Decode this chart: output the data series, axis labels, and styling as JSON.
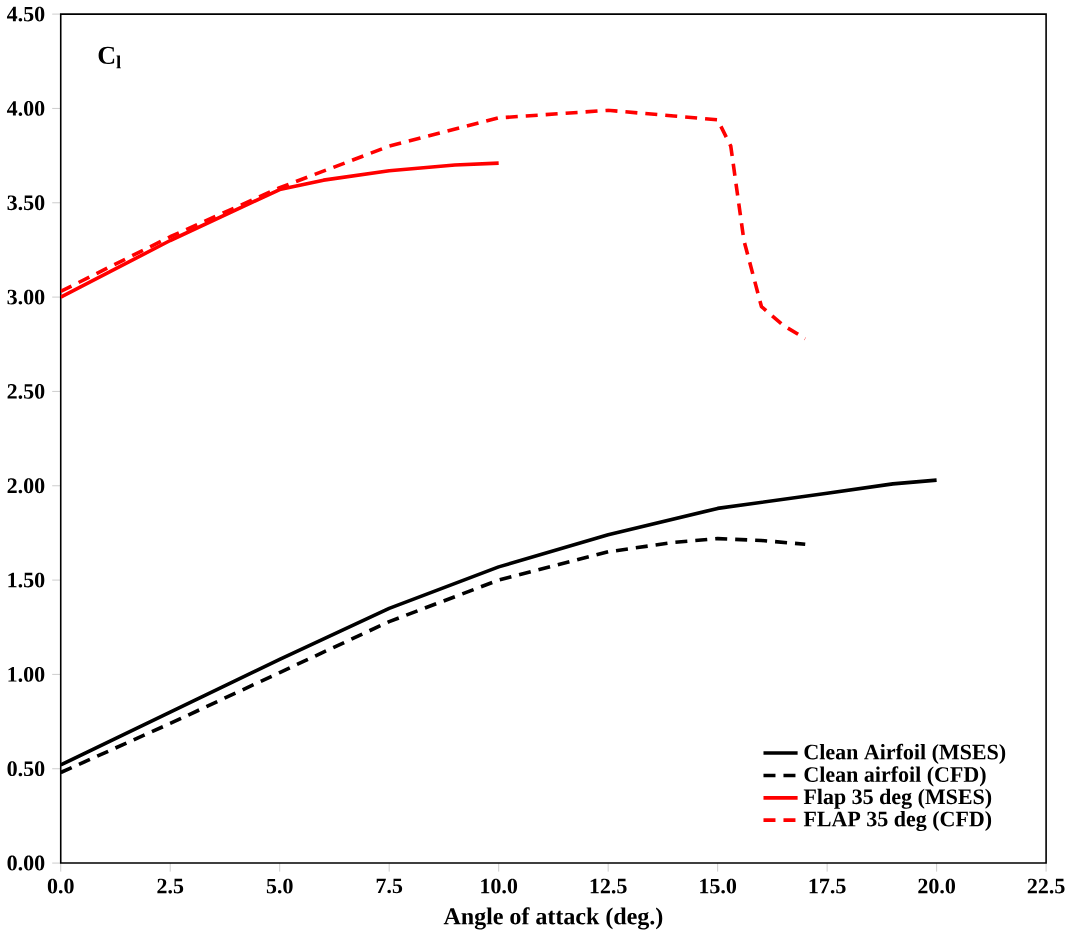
{
  "chart_data": {
    "type": "line",
    "ylabel": "C$_{l}$",
    "xlabel": "Angle of attack (deg.)",
    "xlim": [
      0,
      22.5
    ],
    "ylim": [
      0,
      4.5
    ],
    "xticks": [
      {
        "value": 0,
        "label": "0.0"
      },
      {
        "value": 2.5,
        "label": "2.5"
      },
      {
        "value": 5,
        "label": "5.0"
      },
      {
        "value": 7.5,
        "label": "7.5"
      },
      {
        "value": 10,
        "label": "10.0"
      },
      {
        "value": 12.5,
        "label": "12.5"
      },
      {
        "value": 15,
        "label": "15.0"
      },
      {
        "value": 17.5,
        "label": "17.5"
      },
      {
        "value": 20,
        "label": "20.0"
      },
      {
        "value": 22.5,
        "label": "22.5"
      }
    ],
    "yticks": [
      {
        "value": 0,
        "label": "0.00"
      },
      {
        "value": 0.5,
        "label": "0.50"
      },
      {
        "value": 1,
        "label": "1.00"
      },
      {
        "value": 1.5,
        "label": "1.50"
      },
      {
        "value": 2,
        "label": "2.00"
      },
      {
        "value": 2.5,
        "label": "2.50"
      },
      {
        "value": 3,
        "label": "3.00"
      },
      {
        "value": 3.5,
        "label": "3.50"
      },
      {
        "value": 4,
        "label": "4.00"
      },
      {
        "value": 4.5,
        "label": "4.50"
      }
    ],
    "legend": "bottom right",
    "grid": false,
    "marker": "none",
    "series": [
      {
        "name": "Clean Airfoil (MSES)",
        "color": "#000000",
        "line_style": "solid",
        "x": [
          0,
          2.5,
          5,
          7.5,
          10,
          12.5,
          15,
          17.5,
          19,
          20
        ],
        "values": [
          0.52,
          0.8,
          1.08,
          1.35,
          1.57,
          1.74,
          1.88,
          1.96,
          2.01,
          2.03
        ]
      },
      {
        "name": "Clean airfoil (CFD)",
        "color": "#000000",
        "line_style": "dashed",
        "x": [
          0,
          2.5,
          5,
          7.5,
          10,
          12.5,
          14,
          15,
          16,
          17
        ],
        "values": [
          0.48,
          0.74,
          1.01,
          1.28,
          1.5,
          1.65,
          1.7,
          1.72,
          1.71,
          1.69
        ]
      },
      {
        "name": "Flap 35 deg (MSES)",
        "color": "#ff0000",
        "line_style": "solid",
        "x": [
          0,
          2.5,
          5,
          6,
          7.5,
          9,
          10
        ],
        "values": [
          3.0,
          3.3,
          3.57,
          3.62,
          3.67,
          3.7,
          3.71
        ]
      },
      {
        "name": "FLAP 35 deg (CFD)",
        "color": "#ff0000",
        "line_style": "dashed",
        "x": [
          0,
          2.5,
          5,
          7.5,
          10,
          12.5,
          14,
          15,
          15.3,
          15.6,
          16,
          16.5,
          17
        ],
        "values": [
          3.03,
          3.32,
          3.58,
          3.8,
          3.95,
          3.99,
          3.96,
          3.94,
          3.8,
          3.3,
          2.95,
          2.85,
          2.78
        ]
      }
    ]
  }
}
